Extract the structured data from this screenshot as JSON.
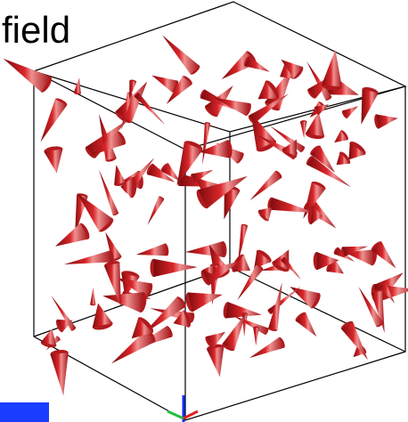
{
  "title": "field"
}
